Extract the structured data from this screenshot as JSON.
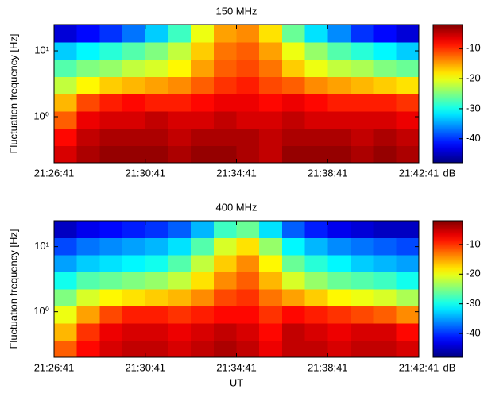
{
  "chart_data": [
    {
      "type": "heatmap",
      "title": "150 MHz",
      "ylabel": "Fluctuation frequency [Hz]",
      "yscale": "log",
      "xlim": [
        "21:26:41",
        "21:42:41"
      ],
      "xticks": [
        "21:26:41",
        "21:30:41",
        "21:34:41",
        "21:38:41",
        "21:42:41"
      ],
      "ylim": [
        0.2,
        25
      ],
      "yticks": [
        {
          "value": 1,
          "label": "10⁰"
        },
        {
          "value": 10,
          "label": "10¹"
        }
      ],
      "colorbar_label": "dB",
      "clim": [
        -48,
        -2
      ],
      "cticks": [
        -10,
        -20,
        -30,
        -40
      ],
      "colormap": "jet",
      "values": [
        [
          -6,
          -4,
          -3,
          -3,
          -3,
          -4,
          -3,
          -3,
          -4,
          -5,
          -3,
          -3,
          -3,
          -4,
          -3,
          -4
        ],
        [
          -8,
          -5,
          -4,
          -4,
          -4,
          -5,
          -4,
          -4,
          -4,
          -5,
          -4,
          -4,
          -4,
          -5,
          -4,
          -5
        ],
        [
          -12,
          -7,
          -6,
          -6,
          -5,
          -6,
          -6,
          -5,
          -6,
          -6,
          -5,
          -6,
          -6,
          -6,
          -6,
          -7
        ],
        [
          -16,
          -11,
          -9,
          -8,
          -9,
          -9,
          -8,
          -7,
          -7,
          -8,
          -7,
          -8,
          -9,
          -9,
          -9,
          -10
        ],
        [
          -22,
          -19,
          -17,
          -16,
          -15,
          -14,
          -12,
          -10,
          -9,
          -11,
          -12,
          -14,
          -15,
          -16,
          -17,
          -18
        ],
        [
          -27,
          -25,
          -24,
          -22,
          -21,
          -19,
          -15,
          -12,
          -11,
          -13,
          -17,
          -20,
          -22,
          -23,
          -25,
          -26
        ],
        [
          -33,
          -31,
          -29,
          -27,
          -25,
          -22,
          -17,
          -13,
          -12,
          -15,
          -20,
          -24,
          -27,
          -29,
          -31,
          -33
        ],
        [
          -44,
          -42,
          -40,
          -37,
          -33,
          -28,
          -20,
          -15,
          -14,
          -18,
          -26,
          -32,
          -36,
          -40,
          -42,
          -44
        ]
      ]
    },
    {
      "type": "heatmap",
      "title": "400 MHz",
      "ylabel": "Fluctuation frequency [Hz]",
      "xlabel": "UT",
      "yscale": "log",
      "xlim": [
        "21:26:41",
        "21:42:41"
      ],
      "xticks": [
        "21:26:41",
        "21:30:41",
        "21:34:41",
        "21:38:41",
        "21:42:41"
      ],
      "ylim": [
        0.2,
        25
      ],
      "yticks": [
        {
          "value": 1,
          "label": "10⁰"
        },
        {
          "value": 10,
          "label": "10¹"
        }
      ],
      "colorbar_label": "dB",
      "clim": [
        -48,
        -2
      ],
      "cticks": [
        -10,
        -20,
        -30,
        -40
      ],
      "colormap": "jet",
      "values": [
        [
          -12,
          -8,
          -6,
          -5,
          -5,
          -6,
          -5,
          -4,
          -5,
          -7,
          -5,
          -5,
          -6,
          -5,
          -5,
          -6
        ],
        [
          -16,
          -10,
          -7,
          -6,
          -6,
          -7,
          -6,
          -5,
          -6,
          -8,
          -5,
          -6,
          -7,
          -6,
          -6,
          -8
        ],
        [
          -20,
          -15,
          -11,
          -9,
          -9,
          -10,
          -9,
          -8,
          -8,
          -10,
          -8,
          -9,
          -10,
          -11,
          -12,
          -14
        ],
        [
          -25,
          -21,
          -19,
          -18,
          -17,
          -16,
          -14,
          -11,
          -10,
          -13,
          -15,
          -17,
          -19,
          -20,
          -21,
          -23
        ],
        [
          -30,
          -27,
          -26,
          -25,
          -24,
          -22,
          -18,
          -14,
          -12,
          -16,
          -21,
          -24,
          -26,
          -27,
          -28,
          -30
        ],
        [
          -35,
          -33,
          -32,
          -31,
          -30,
          -27,
          -22,
          -17,
          -14,
          -19,
          -26,
          -29,
          -31,
          -33,
          -34,
          -35
        ],
        [
          -39,
          -37,
          -36,
          -35,
          -34,
          -32,
          -27,
          -21,
          -18,
          -24,
          -31,
          -34,
          -36,
          -37,
          -38,
          -39
        ],
        [
          -45,
          -43,
          -42,
          -41,
          -40,
          -38,
          -34,
          -28,
          -26,
          -32,
          -38,
          -41,
          -43,
          -44,
          -45,
          -45
        ]
      ]
    }
  ]
}
